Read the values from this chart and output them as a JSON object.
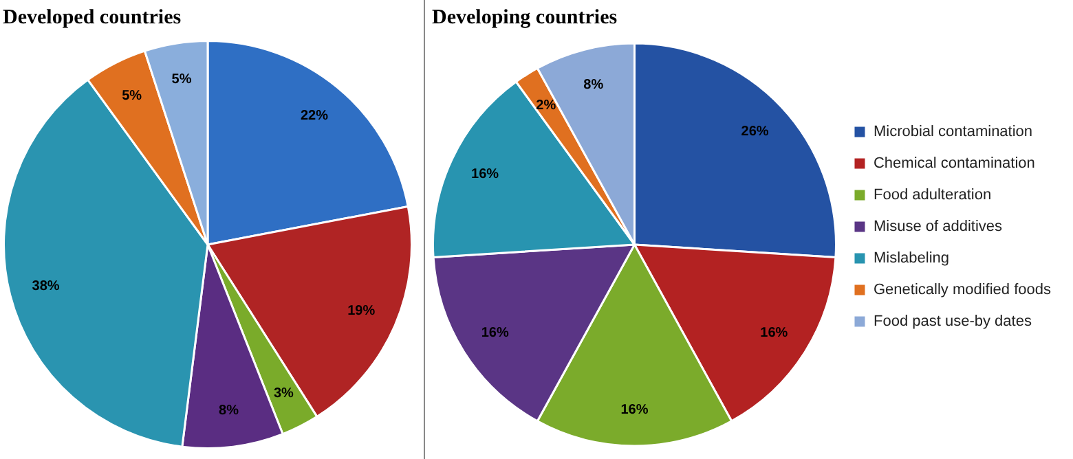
{
  "chart_data": [
    {
      "type": "pie",
      "title": "Developed countries",
      "categories": [
        null,
        null,
        null,
        null,
        null,
        null,
        null
      ],
      "values": [
        22,
        19,
        3,
        8,
        38,
        5,
        5
      ],
      "value_labels": [
        "22%",
        "19%",
        "3%",
        "8%",
        "38%",
        "5%",
        "5%"
      ],
      "colors": [
        "#2f6fc4",
        "#b02424",
        "#7aab2a",
        "#5a2d82",
        "#2a94b0",
        "#e07020",
        "#8aaedc"
      ],
      "legend": false
    },
    {
      "type": "pie",
      "title": "Developing countries",
      "categories": [
        "Microbial contamination",
        "Chemical contamination",
        "Food adulteration",
        "Misuse of additives",
        "Mislabeling",
        "Genetically modified foods",
        "Food past use-by dates"
      ],
      "values": [
        26,
        16,
        16,
        16,
        16,
        2,
        8
      ],
      "value_labels": [
        "26%",
        "16%",
        "16%",
        "16%",
        "16%",
        "2%",
        "8%"
      ],
      "colors": [
        "#2452a3",
        "#b32222",
        "#7bab2b",
        "#5a3585",
        "#2894b0",
        "#e07020",
        "#8ca9d7"
      ],
      "legend": "right"
    }
  ]
}
